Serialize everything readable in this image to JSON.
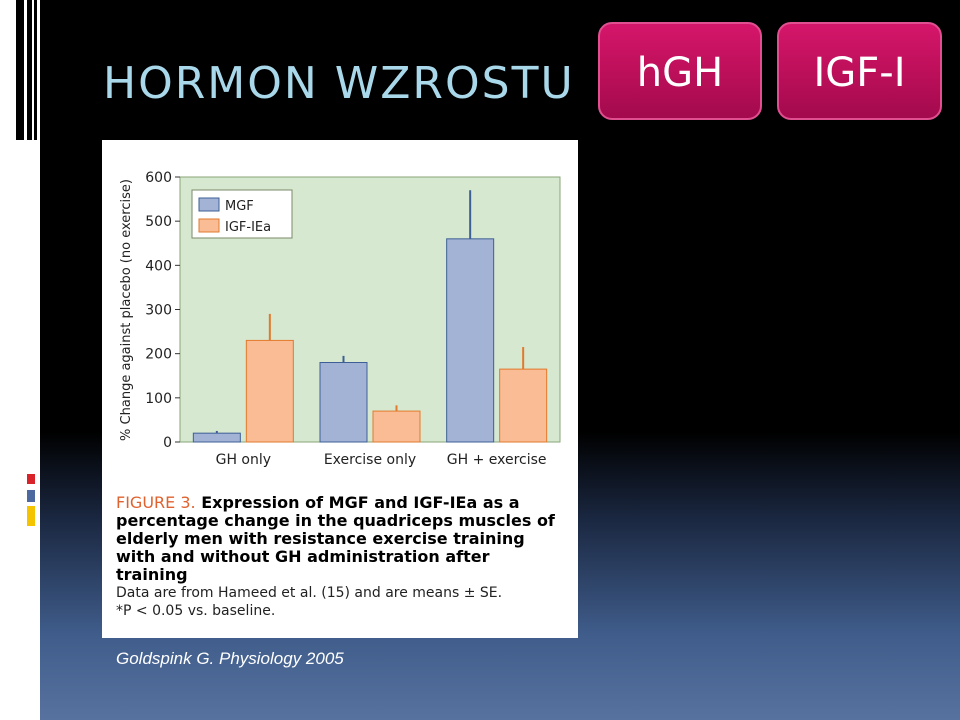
{
  "slide": {
    "title": "HORMON WZROSTU",
    "badges": [
      {
        "label": "hGH"
      },
      {
        "label": "IGF-I"
      }
    ],
    "source": "Goldspink G. Physiology 2005",
    "colors": {
      "title": "#a9d8ea",
      "badge": "#c0105c"
    }
  },
  "figure": {
    "caption_label": "FIGURE 3.",
    "caption_text": "Expression of MGF and IGF-IEa as a percentage change in the quadriceps muscles of elderly men with resistance exercise training with and without GH administration after training",
    "note_line1": "Data are from Hameed et al. (15) and are means ± SE.",
    "note_line2": "*P < 0.05 vs. baseline."
  },
  "chart_data": {
    "type": "bar",
    "categories": [
      "GH only",
      "Exercise only",
      "GH + exercise"
    ],
    "series": [
      {
        "name": "MGF",
        "values": [
          20,
          180,
          460
        ],
        "errors": [
          5,
          15,
          110
        ],
        "color": "#a3b3d6"
      },
      {
        "name": "IGF-IEa",
        "values": [
          230,
          70,
          165
        ],
        "errors": [
          60,
          13,
          50
        ],
        "color": "#f9bc94"
      }
    ],
    "ylabel": "% Change against placebo (no exercise)",
    "ylim": [
      0,
      600
    ],
    "yticks": [
      0,
      100,
      200,
      300,
      400,
      500,
      600
    ],
    "legend": "top-left",
    "plot_bg": "#d6e8cf"
  }
}
